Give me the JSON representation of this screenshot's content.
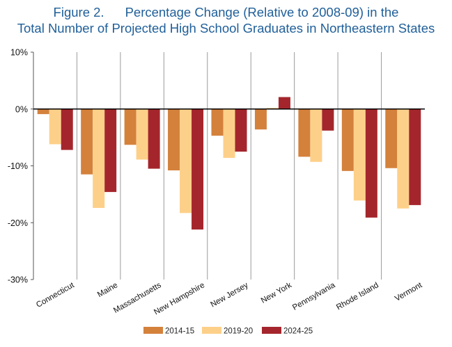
{
  "figure": {
    "label": "Figure 2.",
    "title_line1": "Percentage Change (Relative to 2008-09) in the",
    "title_line2": "Total Number of Projected High School Graduates in Northeastern States"
  },
  "chart_data": {
    "type": "bar",
    "title": "Percentage Change (Relative to 2008-09) in the Total Number of Projected High School Graduates in Northeastern States",
    "categories": [
      "Connecticut",
      "Maine",
      "Massachusetts",
      "New Hampshire",
      "New Jersey",
      "New York",
      "Pennsylvania",
      "Rhode Island",
      "Vermont"
    ],
    "series": [
      {
        "name": "2014-15",
        "color": "#d4813c",
        "values": [
          -0.9,
          -11.5,
          -6.3,
          -10.8,
          -4.7,
          -3.6,
          -8.4,
          -10.9,
          -10.4
        ]
      },
      {
        "name": "2019-20",
        "color": "#fdd089",
        "values": [
          -6.2,
          -17.4,
          -8.9,
          -18.3,
          -8.6,
          0.2,
          -9.3,
          -16.1,
          -17.5
        ]
      },
      {
        "name": "2024-25",
        "color": "#a4262c",
        "values": [
          -7.2,
          -14.6,
          -10.5,
          -21.2,
          -7.5,
          2.1,
          -3.8,
          -19.1,
          -16.9
        ]
      }
    ],
    "ylim": [
      -30,
      10
    ],
    "yticks": [
      10,
      0,
      -10,
      -20,
      -30
    ],
    "ytick_labels": [
      "10%",
      "0%",
      "-10%",
      "-20%",
      "-30%"
    ],
    "xlabel": "",
    "ylabel": "",
    "grid": "vertical category separators",
    "legend_position": "bottom"
  }
}
